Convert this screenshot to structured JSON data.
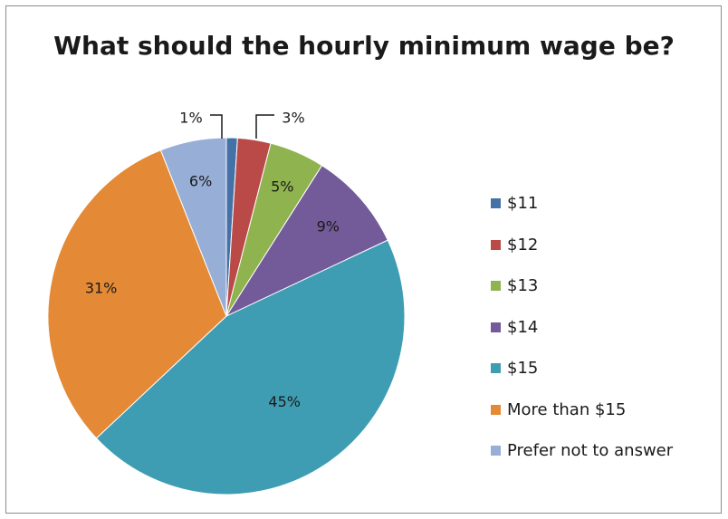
{
  "chart_data": {
    "type": "pie",
    "title": "What should the hourly minimum wage be?",
    "legend_position": "right",
    "start_angle": "12 o'clock",
    "direction": "clockwise",
    "slices": [
      {
        "name": "$11",
        "value": 1,
        "label": "1%",
        "color": "#4472a8"
      },
      {
        "name": "$12",
        "value": 3,
        "label": "3%",
        "color": "#b94a48"
      },
      {
        "name": "$13",
        "value": 5,
        "label": "5%",
        "color": "#8fb34e"
      },
      {
        "name": "$14",
        "value": 9,
        "label": "9%",
        "color": "#735a99"
      },
      {
        "name": "$15",
        "value": 45,
        "label": "45%",
        "color": "#3f9db3"
      },
      {
        "name": "More than $15",
        "value": 31,
        "label": "31%",
        "color": "#e48a36"
      },
      {
        "name": "Prefer not to answer",
        "value": 6,
        "label": "6%",
        "color": "#97aed6"
      }
    ]
  }
}
